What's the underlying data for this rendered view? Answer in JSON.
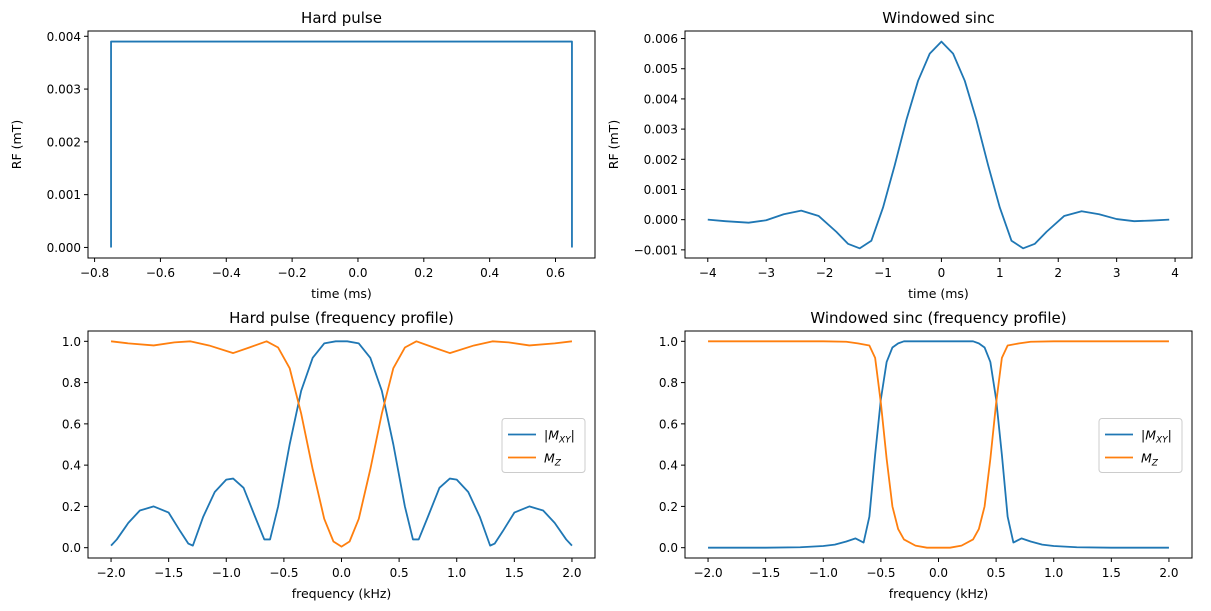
{
  "chart_data": [
    {
      "id": "hard_time",
      "type": "line",
      "title": "Hard pulse",
      "xlabel": "time (ms)",
      "ylabel": "RF (mT)",
      "xlim": [
        -0.82,
        0.72
      ],
      "ylim": [
        -0.0002,
        0.0041
      ],
      "xticks": [
        -0.8,
        -0.6,
        -0.4,
        -0.2,
        0.0,
        0.2,
        0.4,
        0.6
      ],
      "xtick_labels": [
        "−0.8",
        "−0.6",
        "−0.4",
        "−0.2",
        "0.0",
        "0.2",
        "0.4",
        "0.6"
      ],
      "yticks": [
        0.0,
        0.001,
        0.002,
        0.003,
        0.004
      ],
      "ytick_labels": [
        "0.000",
        "0.001",
        "0.002",
        "0.003",
        "0.004"
      ],
      "series": [
        {
          "name": "RF",
          "color": "#1f77b4",
          "x": [
            -0.75,
            -0.75,
            0.65,
            0.65
          ],
          "y": [
            0.0,
            0.0039,
            0.0039,
            0.0
          ]
        }
      ]
    },
    {
      "id": "sinc_time",
      "type": "line",
      "title": "Windowed sinc",
      "xlabel": "time (ms)",
      "ylabel": "RF (mT)",
      "xlim": [
        -4.39,
        4.29
      ],
      "ylim": [
        -0.00127,
        0.00625
      ],
      "xticks": [
        -4,
        -3,
        -2,
        -1,
        0,
        1,
        2,
        3,
        4
      ],
      "xtick_labels": [
        "−4",
        "−3",
        "−2",
        "−1",
        "0",
        "1",
        "2",
        "3",
        "4"
      ],
      "yticks": [
        -0.001,
        0.0,
        0.001,
        0.002,
        0.003,
        0.004,
        0.005,
        0.006
      ],
      "ytick_labels": [
        "−0.001",
        "0.000",
        "0.001",
        "0.002",
        "0.003",
        "0.004",
        "0.005",
        "0.006"
      ],
      "series": [
        {
          "name": "RF",
          "color": "#1f77b4",
          "x": [
            -4.0,
            -3.7,
            -3.3,
            -3.0,
            -2.7,
            -2.4,
            -2.1,
            -1.8,
            -1.6,
            -1.4,
            -1.2,
            -1.0,
            -0.8,
            -0.6,
            -0.4,
            -0.2,
            0.0,
            0.2,
            0.4,
            0.6,
            0.8,
            1.0,
            1.2,
            1.4,
            1.6,
            1.8,
            2.1,
            2.4,
            2.7,
            3.0,
            3.3,
            3.6,
            3.9
          ],
          "y": [
            0.0,
            -5e-05,
            -0.0001,
            -2e-05,
            0.00018,
            0.0003,
            0.00012,
            -0.0004,
            -0.0008,
            -0.00095,
            -0.0007,
            0.0004,
            0.0018,
            0.0033,
            0.0046,
            0.0055,
            0.0059,
            0.0055,
            0.0046,
            0.0033,
            0.0018,
            0.0004,
            -0.0007,
            -0.00095,
            -0.0008,
            -0.0004,
            0.00012,
            0.00028,
            0.00018,
            2e-05,
            -5e-05,
            -3e-05,
            0.0
          ]
        }
      ]
    },
    {
      "id": "hard_freq",
      "type": "line",
      "title": "Hard pulse (frequency profile)",
      "xlabel": "frequency (kHz)",
      "ylabel": "",
      "xlim": [
        -2.2,
        2.2
      ],
      "ylim": [
        -0.05,
        1.05
      ],
      "xticks": [
        -2.0,
        -1.5,
        -1.0,
        -0.5,
        0.0,
        0.5,
        1.0,
        1.5,
        2.0
      ],
      "xtick_labels": [
        "−2.0",
        "−1.5",
        "−1.0",
        "−0.5",
        "0.0",
        "0.5",
        "1.0",
        "1.5",
        "2.0"
      ],
      "yticks": [
        0.0,
        0.2,
        0.4,
        0.6,
        0.8,
        1.0
      ],
      "ytick_labels": [
        "0.0",
        "0.2",
        "0.4",
        "0.6",
        "0.8",
        "1.0"
      ],
      "legend": {
        "position": "center-right",
        "entries": [
          {
            "label_prefix": "|M",
            "label_sub": "XY",
            "label_suffix": "|",
            "color": "#1f77b4"
          },
          {
            "label_prefix": "M",
            "label_sub": "Z",
            "label_suffix": "",
            "color": "#ff7f0e"
          }
        ]
      },
      "series": [
        {
          "name": "|M_XY|",
          "color": "#1f77b4",
          "x": [
            -2.0,
            -1.95,
            -1.85,
            -1.75,
            -1.63,
            -1.5,
            -1.4,
            -1.33,
            -1.29,
            -1.2,
            -1.1,
            -1.0,
            -0.94,
            -0.85,
            -0.75,
            -0.67,
            -0.62,
            -0.55,
            -0.45,
            -0.35,
            -0.25,
            -0.15,
            -0.05,
            0.0,
            0.05,
            0.15,
            0.25,
            0.35,
            0.45,
            0.55,
            0.62,
            0.67,
            0.75,
            0.85,
            0.94,
            1.0,
            1.1,
            1.2,
            1.29,
            1.33,
            1.4,
            1.5,
            1.63,
            1.75,
            1.85,
            1.95,
            2.0
          ],
          "y": [
            0.01,
            0.04,
            0.12,
            0.18,
            0.2,
            0.17,
            0.08,
            0.02,
            0.01,
            0.15,
            0.27,
            0.33,
            0.335,
            0.29,
            0.15,
            0.04,
            0.04,
            0.2,
            0.5,
            0.76,
            0.92,
            0.99,
            1.0,
            1.0,
            1.0,
            0.99,
            0.92,
            0.76,
            0.5,
            0.2,
            0.04,
            0.04,
            0.15,
            0.29,
            0.335,
            0.33,
            0.27,
            0.15,
            0.01,
            0.02,
            0.08,
            0.17,
            0.2,
            0.18,
            0.12,
            0.04,
            0.01
          ]
        },
        {
          "name": "M_Z",
          "color": "#ff7f0e",
          "x": [
            -2.0,
            -1.85,
            -1.63,
            -1.45,
            -1.31,
            -1.15,
            -0.94,
            -0.8,
            -0.65,
            -0.55,
            -0.45,
            -0.35,
            -0.25,
            -0.15,
            -0.07,
            0.0,
            0.07,
            0.15,
            0.25,
            0.35,
            0.45,
            0.55,
            0.65,
            0.8,
            0.94,
            1.15,
            1.31,
            1.45,
            1.63,
            1.85,
            2.0
          ],
          "y": [
            1.0,
            0.99,
            0.98,
            0.995,
            1.0,
            0.98,
            0.943,
            0.97,
            1.0,
            0.97,
            0.87,
            0.65,
            0.38,
            0.14,
            0.03,
            0.005,
            0.03,
            0.14,
            0.38,
            0.65,
            0.87,
            0.97,
            1.0,
            0.97,
            0.943,
            0.98,
            1.0,
            0.995,
            0.98,
            0.99,
            1.0
          ]
        }
      ]
    },
    {
      "id": "sinc_freq",
      "type": "line",
      "title": "Windowed sinc (frequency profile)",
      "xlabel": "frequency (kHz)",
      "ylabel": "",
      "xlim": [
        -2.2,
        2.2
      ],
      "ylim": [
        -0.05,
        1.05
      ],
      "xticks": [
        -2.0,
        -1.5,
        -1.0,
        -0.5,
        0.0,
        0.5,
        1.0,
        1.5,
        2.0
      ],
      "xtick_labels": [
        "−2.0",
        "−1.5",
        "−1.0",
        "−0.5",
        "0.0",
        "0.5",
        "1.0",
        "1.5",
        "2.0"
      ],
      "yticks": [
        0.0,
        0.2,
        0.4,
        0.6,
        0.8,
        1.0
      ],
      "ytick_labels": [
        "0.0",
        "0.2",
        "0.4",
        "0.6",
        "0.8",
        "1.0"
      ],
      "legend": {
        "position": "center-right",
        "entries": [
          {
            "label_prefix": "|M",
            "label_sub": "XY",
            "label_suffix": "|",
            "color": "#1f77b4"
          },
          {
            "label_prefix": "M",
            "label_sub": "Z",
            "label_suffix": "",
            "color": "#ff7f0e"
          }
        ]
      },
      "series": [
        {
          "name": "|M_XY|",
          "color": "#1f77b4",
          "x": [
            -2.0,
            -1.5,
            -1.2,
            -1.0,
            -0.9,
            -0.8,
            -0.72,
            -0.65,
            -0.6,
            -0.55,
            -0.5,
            -0.45,
            -0.4,
            -0.35,
            -0.3,
            -0.2,
            0.0,
            0.2,
            0.3,
            0.35,
            0.4,
            0.45,
            0.5,
            0.55,
            0.6,
            0.65,
            0.72,
            0.8,
            0.9,
            1.0,
            1.2,
            1.5,
            2.0
          ],
          "y": [
            0.0,
            0.0,
            0.002,
            0.008,
            0.015,
            0.03,
            0.045,
            0.025,
            0.15,
            0.45,
            0.72,
            0.9,
            0.97,
            0.99,
            1.0,
            1.0,
            1.0,
            1.0,
            1.0,
            0.99,
            0.97,
            0.9,
            0.72,
            0.45,
            0.15,
            0.025,
            0.045,
            0.03,
            0.015,
            0.008,
            0.002,
            0.0,
            0.0
          ]
        },
        {
          "name": "M_Z",
          "color": "#ff7f0e",
          "x": [
            -2.0,
            -1.5,
            -1.0,
            -0.8,
            -0.7,
            -0.6,
            -0.55,
            -0.5,
            -0.45,
            -0.4,
            -0.35,
            -0.3,
            -0.2,
            -0.1,
            0.0,
            0.1,
            0.2,
            0.3,
            0.35,
            0.4,
            0.45,
            0.5,
            0.55,
            0.6,
            0.7,
            0.8,
            1.0,
            1.5,
            2.0
          ],
          "y": [
            1.0,
            1.0,
            1.0,
            0.998,
            0.99,
            0.98,
            0.92,
            0.7,
            0.43,
            0.2,
            0.09,
            0.04,
            0.01,
            0.0,
            0.0,
            0.0,
            0.01,
            0.04,
            0.09,
            0.2,
            0.43,
            0.7,
            0.92,
            0.98,
            0.99,
            0.998,
            1.0,
            1.0,
            1.0
          ]
        }
      ]
    }
  ]
}
